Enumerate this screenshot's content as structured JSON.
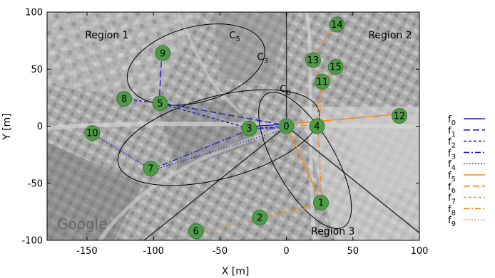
{
  "chart_data": {
    "type": "scatter",
    "xlabel": "X [m]",
    "ylabel": "Y [m]",
    "xlim": [
      -180,
      100
    ],
    "ylim": [
      -100,
      100
    ],
    "xticks": [
      -150,
      -100,
      -50,
      0,
      50,
      100
    ],
    "yticks": [
      -100,
      -50,
      0,
      50,
      100
    ],
    "watermark": "Google",
    "regions": [
      {
        "name": "Region 1",
        "x": -135,
        "y": 80
      },
      {
        "name": "Region 2",
        "x": 78,
        "y": 80
      },
      {
        "name": "Region 3",
        "x": 35,
        "y": -92
      }
    ],
    "region_boundaries": [
      {
        "from": [
          0,
          0
        ],
        "to": [
          0,
          100
        ]
      },
      {
        "from": [
          0,
          0
        ],
        "to": [
          -107,
          -100
        ]
      },
      {
        "from": [
          0,
          0
        ],
        "to": [
          107,
          -100
        ]
      }
    ],
    "nodes": [
      {
        "id": "0",
        "x": 0,
        "y": 0
      },
      {
        "id": "1",
        "x": 26,
        "y": -67
      },
      {
        "id": "2",
        "x": -20,
        "y": -80
      },
      {
        "id": "3",
        "x": -28,
        "y": -2
      },
      {
        "id": "4",
        "x": 23,
        "y": 0
      },
      {
        "id": "5",
        "x": -95,
        "y": 20
      },
      {
        "id": "6",
        "x": -68,
        "y": -92
      },
      {
        "id": "7",
        "x": -102,
        "y": -37
      },
      {
        "id": "8",
        "x": -122,
        "y": 24
      },
      {
        "id": "9",
        "x": -93,
        "y": 64
      },
      {
        "id": "10",
        "x": -146,
        "y": -6
      },
      {
        "id": "11",
        "x": 27,
        "y": 39
      },
      {
        "id": "12",
        "x": 85,
        "y": 9
      },
      {
        "id": "13",
        "x": 20,
        "y": 58
      },
      {
        "id": "14",
        "x": 38,
        "y": 89
      },
      {
        "id": "15",
        "x": 37,
        "y": 52
      }
    ],
    "ellipses": [
      {
        "label": "C5",
        "label_main": "C",
        "label_sub": "5",
        "cx": -68,
        "cy": 54,
        "rx": 53,
        "ry": 33,
        "angle": 15,
        "label_x": -43,
        "label_y": 77
      },
      {
        "label": "C3",
        "label_main": "C",
        "label_sub": "3",
        "cx": -51,
        "cy": -10,
        "rx": 78,
        "ry": 36,
        "angle": 15,
        "label_x": -22,
        "label_y": 58
      },
      {
        "label": "C0",
        "label_main": "C",
        "label_sub": "0",
        "cx": 14,
        "cy": -30,
        "rx": 58,
        "ry": 26,
        "angle": -60,
        "label_x": -5,
        "label_y": 30
      }
    ],
    "series": [
      {
        "name": "f0",
        "name_main": "f",
        "name_sub": "0",
        "color": "#1f1fbf",
        "dash": "",
        "path": [
          "3",
          "0"
        ]
      },
      {
        "name": "f1",
        "name_main": "f",
        "name_sub": "1",
        "color": "#1f1fbf",
        "dash": "9,4",
        "path": [
          "9",
          "5",
          "0"
        ]
      },
      {
        "name": "f2",
        "name_main": "f",
        "name_sub": "2",
        "color": "#1f1fbf",
        "dash": "4,3",
        "path": [
          "8",
          "5",
          "3",
          "0"
        ]
      },
      {
        "name": "f3",
        "name_main": "f",
        "name_sub": "3",
        "color": "#1f1fbf",
        "dash": "8,3,2,3",
        "path": [
          "7",
          "3",
          "0"
        ]
      },
      {
        "name": "f4",
        "name_main": "f",
        "name_sub": "4",
        "color": "#1f1fbf",
        "dash": "1.5,2.5",
        "path": [
          "10",
          "7",
          "0"
        ]
      },
      {
        "name": "f5",
        "name_main": "f",
        "name_sub": "5",
        "color": "#f08a1c",
        "dash": "",
        "path": [
          "12",
          "0"
        ]
      },
      {
        "name": "f6",
        "name_main": "f",
        "name_sub": "6",
        "color": "#f08a1c",
        "dash": "9,4",
        "path": [
          "14",
          "13",
          "11",
          "4",
          "0"
        ]
      },
      {
        "name": "f7",
        "name_main": "f",
        "name_sub": "7",
        "color": "#f08a1c",
        "dash": "4,3",
        "path": [
          "2",
          "1",
          "0"
        ]
      },
      {
        "name": "f8",
        "name_main": "f",
        "name_sub": "8",
        "color": "#f08a1c",
        "dash": "8,3,2,3",
        "path": [
          "15",
          "11",
          "4",
          "1",
          "0"
        ]
      },
      {
        "name": "f9",
        "name_main": "f",
        "name_sub": "9",
        "color": "#f08a1c",
        "dash": "1.5,2.5",
        "path": [
          "6",
          "1",
          "0"
        ]
      }
    ],
    "node_color": "#4e9a48",
    "grid": false,
    "legend_position": "right"
  }
}
